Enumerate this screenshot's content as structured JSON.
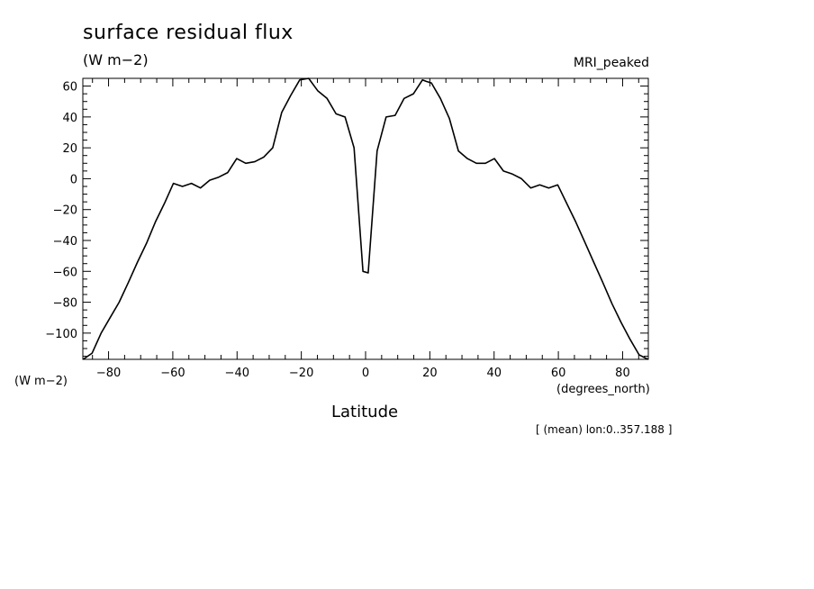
{
  "title": "surface residual flux",
  "units_top": "(W m−2)",
  "model_label": "MRI_peaked",
  "ylabel": "(W m−2)",
  "xunits": "(degrees_north)",
  "xlabel": "Latitude",
  "footnote": "[ (mean) lon:0..357.188 ]",
  "chart_data": {
    "type": "line",
    "title": "surface residual flux",
    "xlabel": "Latitude",
    "ylabel": "(W m−2)",
    "xlim": [
      -88,
      88
    ],
    "ylim": [
      -117,
      65
    ],
    "xticks": [
      -80,
      -60,
      -40,
      -20,
      0,
      20,
      40,
      60,
      80
    ],
    "yticks": [
      60,
      40,
      20,
      0,
      -20,
      -40,
      -60,
      -80,
      -100
    ],
    "xtick_labels": [
      "−80",
      "−60",
      "−40",
      "−20",
      "0",
      "20",
      "40",
      "60",
      "80"
    ],
    "ytick_labels": [
      "60",
      "40",
      "20",
      "0",
      "−20",
      "−40",
      "−60",
      "−80",
      "−100"
    ],
    "grid": false,
    "series": [
      {
        "x": [
          -87.9,
          -85.1,
          -82.3,
          -79.5,
          -76.7,
          -73.8,
          -71.0,
          -68.2,
          -65.4,
          -62.6,
          -59.8,
          -57.0,
          -54.2,
          -51.4,
          -48.5,
          -45.7,
          -42.9,
          -40.1,
          -37.3,
          -34.5,
          -31.7,
          -28.9,
          -26.1,
          -23.3,
          -20.5,
          -17.7,
          -14.9,
          -12.0,
          -9.2,
          -6.4,
          -3.6,
          -0.8,
          0.8,
          3.6,
          6.4,
          9.2,
          12.0,
          14.9,
          17.7,
          18.9,
          20.5,
          23.3,
          26.1,
          28.9,
          31.7,
          34.5,
          37.3,
          40.1,
          42.9,
          45.7,
          48.5,
          51.4,
          54.2,
          57.0,
          59.8,
          62.6,
          65.4,
          68.2,
          71.0,
          73.8,
          76.7,
          79.5,
          82.3,
          85.1,
          87.9
        ],
        "values": [
          -117,
          -113,
          -100,
          -90,
          -80,
          -67,
          -54,
          -42,
          -28,
          -16,
          -3,
          -5,
          -3,
          -6,
          -1,
          1,
          4,
          13,
          10,
          11,
          14,
          20,
          43,
          54,
          64,
          65,
          57,
          52,
          42,
          40,
          20,
          -60,
          -61,
          18,
          40,
          41,
          52,
          55,
          64,
          63,
          62,
          52,
          39,
          18,
          13,
          10,
          10,
          13,
          5,
          3,
          0,
          -6,
          -4,
          -6,
          -4,
          -16,
          -28,
          -41,
          -54,
          -67,
          -81,
          -93,
          -104,
          -114,
          -117
        ]
      }
    ]
  }
}
